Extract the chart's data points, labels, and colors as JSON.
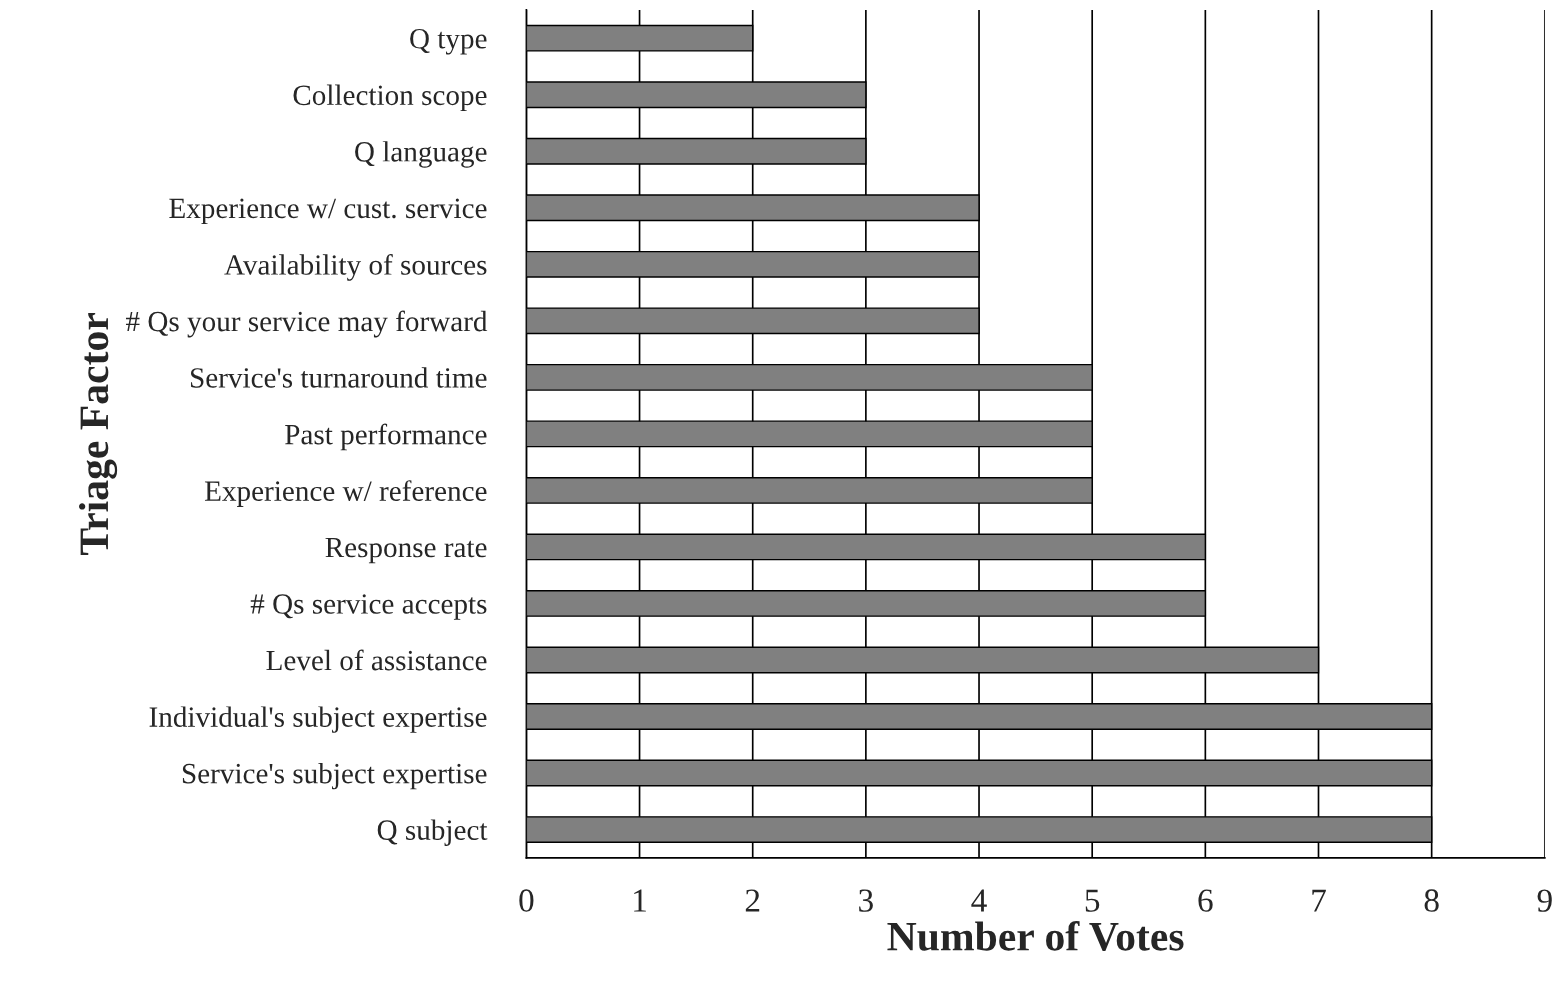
{
  "chart_data": {
    "type": "bar",
    "orientation": "horizontal",
    "xlabel": "Number of Votes",
    "ylabel": "Triage Factor",
    "categories": [
      "Q type",
      "Collection scope",
      "Q language",
      "Experience w/ cust. service",
      "Availability of sources",
      "# Qs your service may forward",
      "Service's turnaround time",
      "Past performance",
      "Experience w/ reference",
      "Response rate",
      "# Qs service accepts",
      "Level of assistance",
      "Individual's subject expertise",
      "Service's subject expertise",
      "Q subject"
    ],
    "values": [
      2,
      3,
      3,
      4,
      4,
      4,
      5,
      5,
      5,
      6,
      6,
      7,
      8,
      8,
      8
    ],
    "color": "#808080",
    "xlim": [
      0,
      9
    ],
    "xticks": [
      0,
      1,
      2,
      3,
      4,
      5,
      6,
      7,
      8,
      9
    ],
    "grid": "x",
    "legend": false
  }
}
